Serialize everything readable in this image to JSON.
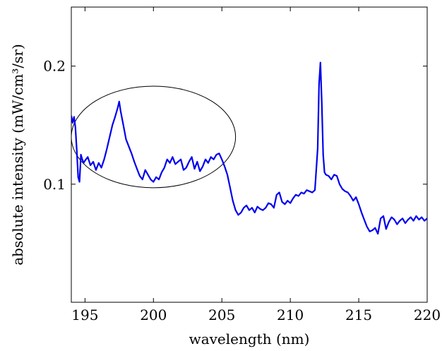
{
  "chart_data": {
    "type": "line",
    "xlabel": "wavelength (nm)",
    "ylabel": "absolute intensity (mW/cm³/sr)",
    "xlim": [
      194,
      220
    ],
    "ylim": [
      0,
      0.25
    ],
    "xticks": [
      195,
      200,
      205,
      210,
      215,
      220
    ],
    "xtick_labels": [
      "195",
      "200",
      "205",
      "210",
      "215",
      "220"
    ],
    "yticks": [
      0.1,
      0.2
    ],
    "ytick_labels": [
      "0.1",
      "0.2"
    ],
    "grid": false,
    "legend": "none",
    "colors": {
      "series": "#0000ee",
      "annotation": "#000000"
    },
    "series": [
      {
        "x": [
          194.0,
          194.1,
          194.2,
          194.3,
          194.4,
          194.5,
          194.6,
          194.7,
          194.8,
          194.9,
          195.0,
          195.2,
          195.4,
          195.6,
          195.8,
          196.0,
          196.2,
          196.4,
          196.6,
          196.8,
          197.0,
          197.2,
          197.4,
          197.5,
          197.6,
          197.8,
          198.0,
          198.2,
          198.4,
          198.6,
          198.8,
          199.0,
          199.2,
          199.4,
          199.6,
          199.8,
          200.0,
          200.2,
          200.4,
          200.6,
          200.8,
          201.0,
          201.2,
          201.4,
          201.6,
          201.8,
          202.0,
          202.2,
          202.4,
          202.6,
          202.8,
          203.0,
          203.2,
          203.4,
          203.6,
          203.8,
          204.0,
          204.2,
          204.4,
          204.6,
          204.8,
          205.0,
          205.2,
          205.4,
          205.6,
          205.8,
          206.0,
          206.2,
          206.4,
          206.6,
          206.8,
          207.0,
          207.2,
          207.4,
          207.6,
          207.8,
          208.0,
          208.2,
          208.4,
          208.6,
          208.8,
          209.0,
          209.2,
          209.4,
          209.6,
          209.8,
          210.0,
          210.2,
          210.4,
          210.6,
          210.8,
          211.0,
          211.2,
          211.4,
          211.6,
          211.8,
          212.0,
          212.1,
          212.2,
          212.3,
          212.4,
          212.5,
          212.6,
          212.8,
          213.0,
          213.2,
          213.4,
          213.6,
          213.8,
          214.0,
          214.2,
          214.4,
          214.6,
          214.8,
          215.0,
          215.2,
          215.4,
          215.6,
          215.8,
          216.0,
          216.2,
          216.4,
          216.6,
          216.8,
          217.0,
          217.2,
          217.4,
          217.6,
          217.8,
          218.0,
          218.2,
          218.4,
          218.6,
          218.8,
          219.0,
          219.2,
          219.4,
          219.6,
          219.8,
          220.0
        ],
        "y": [
          0.158,
          0.152,
          0.157,
          0.148,
          0.128,
          0.106,
          0.102,
          0.125,
          0.121,
          0.118,
          0.12,
          0.123,
          0.116,
          0.119,
          0.112,
          0.118,
          0.114,
          0.121,
          0.13,
          0.14,
          0.15,
          0.157,
          0.165,
          0.17,
          0.162,
          0.15,
          0.138,
          0.132,
          0.126,
          0.119,
          0.113,
          0.107,
          0.104,
          0.112,
          0.108,
          0.104,
          0.102,
          0.106,
          0.104,
          0.11,
          0.114,
          0.121,
          0.118,
          0.123,
          0.117,
          0.119,
          0.121,
          0.112,
          0.114,
          0.119,
          0.123,
          0.113,
          0.119,
          0.111,
          0.115,
          0.121,
          0.118,
          0.123,
          0.121,
          0.125,
          0.126,
          0.121,
          0.115,
          0.108,
          0.097,
          0.086,
          0.078,
          0.074,
          0.076,
          0.08,
          0.082,
          0.078,
          0.08,
          0.076,
          0.081,
          0.079,
          0.078,
          0.08,
          0.084,
          0.083,
          0.08,
          0.091,
          0.093,
          0.085,
          0.083,
          0.086,
          0.084,
          0.088,
          0.091,
          0.09,
          0.093,
          0.092,
          0.095,
          0.094,
          0.093,
          0.095,
          0.13,
          0.185,
          0.203,
          0.17,
          0.125,
          0.11,
          0.108,
          0.107,
          0.104,
          0.108,
          0.107,
          0.1,
          0.096,
          0.094,
          0.093,
          0.09,
          0.086,
          0.089,
          0.083,
          0.076,
          0.07,
          0.064,
          0.06,
          0.061,
          0.063,
          0.058,
          0.071,
          0.073,
          0.062,
          0.068,
          0.072,
          0.07,
          0.066,
          0.069,
          0.071,
          0.067,
          0.07,
          0.072,
          0.069,
          0.073,
          0.07,
          0.072,
          0.069,
          0.071
        ]
      }
    ],
    "annotation": {
      "shape": "ellipse",
      "cx": 200.0,
      "cy": 0.14,
      "rx": 6.0,
      "ry": 0.043
    }
  }
}
